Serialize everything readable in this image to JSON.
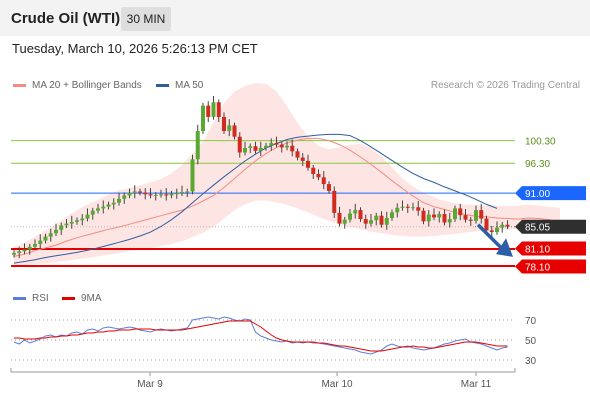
{
  "header": {
    "title": "Crude Oil (WTI)",
    "interval": "30 MIN",
    "datetime": "Tuesday, March 10, 2026 5:26:13 PM CET"
  },
  "legend": {
    "main": [
      {
        "label": "MA 20 + Bollinger Bands",
        "color": "#f28b82"
      },
      {
        "label": "MA 50",
        "color": "#2f5d9c"
      }
    ],
    "credit": "Research © 2026 Trading Central",
    "rsi": [
      {
        "label": "RSI",
        "color": "#5b7fd6"
      },
      {
        "label": "9MA",
        "color": "#e60000"
      }
    ]
  },
  "chart_data": {
    "type": "candlestick",
    "x_ticks": [
      "Mar 9",
      "Mar 10",
      "Mar 11"
    ],
    "price_ylim": [
      76.5,
      107.5
    ],
    "levels": [
      {
        "label": "100.30",
        "value": 100.3,
        "color": "#8cc63f",
        "text_color": "#5a8f1a",
        "badge": false
      },
      {
        "label": "96.30",
        "value": 96.3,
        "color": "#8cc63f",
        "text_color": "#5a8f1a",
        "badge": false
      },
      {
        "label": "91.00",
        "value": 91.0,
        "color": "#1a66ff",
        "badge": true
      },
      {
        "label": "85.05",
        "value": 85.05,
        "color": "#2f2f2f",
        "badge": true
      },
      {
        "label": "81.10",
        "value": 81.1,
        "color": "#e60000",
        "badge": true
      },
      {
        "label": "78.10",
        "value": 78.1,
        "color": "#e60000",
        "badge": true
      }
    ],
    "close": [
      80.4,
      80.7,
      81.0,
      81.5,
      82.0,
      82.6,
      83.3,
      83.9,
      84.5,
      85.3,
      85.6,
      85.9,
      86.2,
      86.5,
      87.2,
      87.9,
      88.3,
      88.6,
      89.0,
      89.3,
      90.0,
      90.6,
      91.0,
      91.3,
      91.1,
      90.8,
      90.6,
      90.7,
      90.8,
      90.6,
      90.9,
      91.0,
      91.2,
      91.3,
      97.0,
      102.0,
      106.5,
      104.5,
      107.1,
      104.5,
      102.0,
      103.0,
      101.0,
      98.2,
      99.0,
      99.3,
      98.5,
      99.0,
      99.4,
      99.9,
      99.6,
      99.1,
      99.4,
      98.4,
      97.3,
      96.7,
      95.5,
      94.4,
      93.8,
      92.6,
      91.4,
      87.5,
      85.6,
      86.3,
      87.4,
      88.0,
      86.4,
      85.6,
      86.2,
      87.0,
      85.4,
      86.6,
      87.6,
      88.4,
      88.6,
      88.4,
      88.5,
      87.9,
      86.0,
      87.2,
      86.7,
      87.3,
      85.8,
      86.4,
      88.3,
      87.1,
      86.3,
      86.1,
      88.0,
      86.5,
      84.4,
      84.1,
      84.9,
      85.4,
      85.1
    ],
    "ma20": [
      79.8,
      80.2,
      80.8,
      81.3,
      81.8,
      82.5,
      83.1,
      83.6,
      84.1,
      84.6,
      85.0,
      85.5,
      86.0,
      86.5,
      87.0,
      87.5,
      88.0,
      88.7,
      89.6,
      90.6,
      92.0,
      93.6,
      95.2,
      96.7,
      98.0,
      99.1,
      99.9,
      100.4,
      100.7,
      100.7,
      100.3,
      99.6,
      98.6,
      97.4,
      96.1,
      94.7,
      93.2,
      91.8,
      90.5,
      89.3,
      88.6,
      88.1,
      87.6,
      87.2,
      86.9,
      86.8,
      86.6,
      86.5,
      86.4,
      86.6,
      86.5,
      86.3,
      85.8
    ],
    "ma20_x0": 0,
    "ma20_step": 2,
    "bb_upper": [
      81.5,
      82.2,
      83.3,
      84.4,
      85.5,
      86.8,
      88.0,
      89.0,
      89.8,
      90.7,
      91.5,
      91.9,
      92.4,
      92.9,
      93.5,
      94.5,
      96.0,
      98.0,
      100.2,
      103.5,
      107.0,
      109.0,
      110.0,
      110.5,
      110.4,
      109.0,
      106.4,
      103.5,
      101.0,
      99.4,
      98.8,
      99.1,
      99.6,
      99.7,
      99.0,
      97.5,
      95.6,
      93.6,
      92.2,
      91.0,
      90.3,
      89.6,
      89.2,
      89.0,
      88.9,
      88.8,
      88.8,
      88.7,
      88.8,
      88.9,
      88.8,
      88.6,
      88.4
    ],
    "bb_lower": [
      78.0,
      78.2,
      78.4,
      78.6,
      78.8,
      79.0,
      79.3,
      79.5,
      79.8,
      80.1,
      80.4,
      80.7,
      81.0,
      81.3,
      81.6,
      82.0,
      82.5,
      83.2,
      84.0,
      85.0,
      86.5,
      88.0,
      89.0,
      89.7,
      89.7,
      89.4,
      88.9,
      88.3,
      87.6,
      86.8,
      86.1,
      85.5,
      85.0,
      84.6,
      84.2,
      83.9,
      83.6,
      83.4,
      83.3,
      83.3,
      83.4,
      83.6,
      83.8,
      84.0,
      84.2,
      84.3,
      84.5,
      84.6,
      84.7,
      84.8,
      84.6,
      84.3,
      83.7
    ],
    "ma50": [
      78.6,
      78.9,
      79.2,
      79.6,
      79.9,
      80.2,
      80.5,
      80.9,
      81.3,
      81.8,
      82.3,
      82.8,
      83.4,
      84.1,
      85.1,
      86.3,
      87.7,
      89.3,
      90.9,
      92.4,
      93.9,
      95.3,
      96.7,
      97.9,
      99.0,
      99.8,
      100.5,
      100.9,
      101.1,
      101.3,
      101.4,
      101.4,
      101.2,
      100.3,
      99.2,
      98.0,
      96.8,
      95.6,
      94.5,
      93.6,
      92.9,
      92.1,
      91.4,
      90.7,
      89.9,
      89.0,
      88.3
    ],
    "ma50_x0": 0,
    "ma50_step": 2,
    "candle_x0": 14,
    "candle_step": 5.25,
    "rsi": [
      48,
      46,
      50,
      47,
      49,
      51,
      54,
      55,
      53,
      55,
      54,
      57,
      58,
      56,
      60,
      61,
      59,
      62,
      63,
      62,
      61,
      62,
      63,
      62,
      60,
      59,
      58,
      60,
      61,
      60,
      59,
      60,
      61,
      62,
      70,
      71,
      72,
      73,
      72,
      71,
      73,
      72,
      70,
      69,
      71,
      70,
      58,
      54,
      52,
      50,
      49,
      48,
      49,
      47,
      48,
      47,
      48,
      47,
      47,
      46,
      45,
      44,
      43,
      42,
      41,
      40,
      38,
      37,
      36,
      38,
      40,
      44,
      46,
      44,
      43,
      44,
      42,
      41,
      40,
      41,
      42,
      44,
      46,
      47,
      49,
      50,
      51,
      48,
      47,
      46,
      44,
      42,
      40,
      42,
      43
    ],
    "rsi_ma": [
      52,
      52,
      51,
      51,
      51,
      52,
      52,
      53,
      53,
      54,
      54,
      55,
      55,
      56,
      57,
      57,
      58,
      58,
      59,
      59,
      60,
      60,
      60,
      61,
      61,
      61,
      61,
      60,
      60,
      60,
      60,
      60,
      60,
      61,
      62,
      63,
      64,
      65,
      66,
      67,
      68,
      69,
      69,
      69,
      69,
      69,
      66,
      63,
      59,
      55,
      52,
      50,
      49,
      48,
      48,
      48,
      48,
      48,
      47,
      47,
      46,
      45,
      44,
      44,
      43,
      42,
      41,
      40,
      39,
      39,
      39,
      40,
      41,
      42,
      43,
      43,
      44,
      43,
      43,
      42,
      42,
      43,
      44,
      45,
      46,
      47,
      48,
      48,
      48,
      47,
      46,
      45,
      44,
      44,
      44
    ],
    "rsi_levels": [
      {
        "label": "70",
        "value": 70
      },
      {
        "label": "50",
        "value": 50
      },
      {
        "label": "30",
        "value": 30
      }
    ]
  }
}
